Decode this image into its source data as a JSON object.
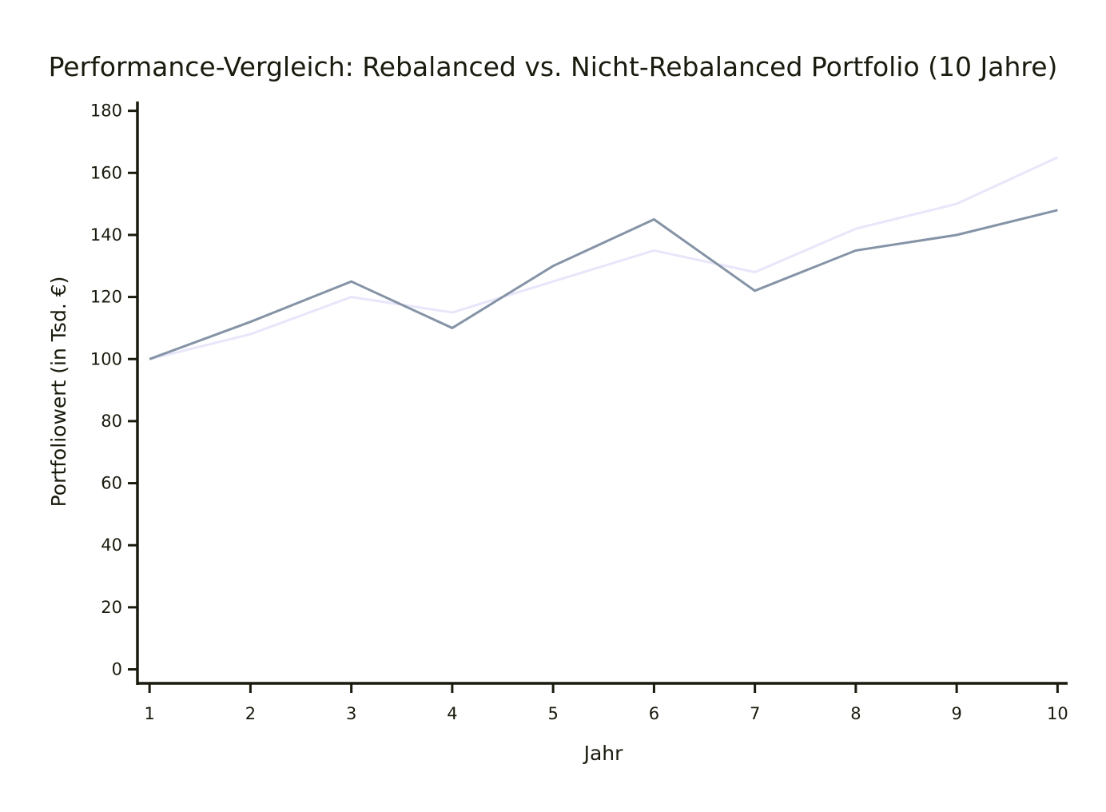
{
  "chart_data": {
    "type": "line",
    "title": "Performance-Vergleich: Rebalanced vs. Nicht-Rebalanced Portfolio (10 Jahre)",
    "xlabel": "Jahr",
    "ylabel": "Portfoliowert (in Tsd. €)",
    "x": [
      1,
      2,
      3,
      4,
      5,
      6,
      7,
      8,
      9,
      10
    ],
    "x_tick_labels": [
      "1",
      "2",
      "3",
      "4",
      "5",
      "6",
      "7",
      "8",
      "9",
      "10"
    ],
    "y_ticks": [
      0,
      20,
      40,
      60,
      80,
      100,
      120,
      140,
      160,
      180
    ],
    "y_tick_labels": [
      "0",
      "20",
      "40",
      "60",
      "80",
      "100",
      "120",
      "140",
      "160",
      "180"
    ],
    "xlim": [
      0.88,
      10.1
    ],
    "ylim": [
      -4.5,
      183
    ],
    "grid": false,
    "legend": "none",
    "series": [
      {
        "values": [
          100,
          108,
          120,
          115,
          125,
          135,
          128,
          142,
          150,
          165
        ],
        "color": "#e8e6fa"
      },
      {
        "values": [
          100,
          112,
          125,
          110,
          130,
          145,
          122,
          135,
          140,
          148
        ],
        "color": "#8593a6"
      }
    ]
  }
}
